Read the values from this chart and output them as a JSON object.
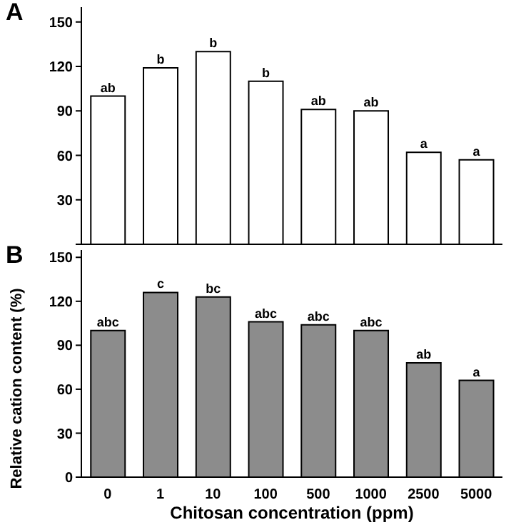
{
  "chart_data": [
    {
      "type": "bar",
      "title": "A",
      "categories": [
        "0",
        "1",
        "10",
        "100",
        "500",
        "1000",
        "2500",
        "5000"
      ],
      "values": [
        100,
        119,
        130,
        110,
        91,
        90,
        62,
        57
      ],
      "color": "#ffffff",
      "value_labels": [
        "ab",
        "b",
        "b",
        "b",
        "ab",
        "ab",
        "a",
        "a"
      ],
      "ylim": [
        0,
        160
      ],
      "yticks": [
        {
          "value": 0,
          "label": null
        },
        30,
        60,
        90,
        120,
        150
      ],
      "tick_labels": "y"
    },
    {
      "type": "bar",
      "title": "B",
      "ylabel": "Relative cation content (%)",
      "xlabel": "Chitosan concentration (ppm)",
      "categories": [
        "0",
        "1",
        "10",
        "100",
        "500",
        "1000",
        "2500",
        "5000"
      ],
      "values": [
        100,
        126,
        123,
        106,
        104,
        100,
        78,
        66
      ],
      "color": "#8c8c8c",
      "value_labels": [
        "abc",
        "c",
        "bc",
        "abc",
        "abc",
        "abc",
        "ab",
        "a"
      ],
      "ylim": [
        0,
        155
      ],
      "yticks": [
        0,
        30,
        60,
        90,
        120,
        150
      ]
    }
  ]
}
